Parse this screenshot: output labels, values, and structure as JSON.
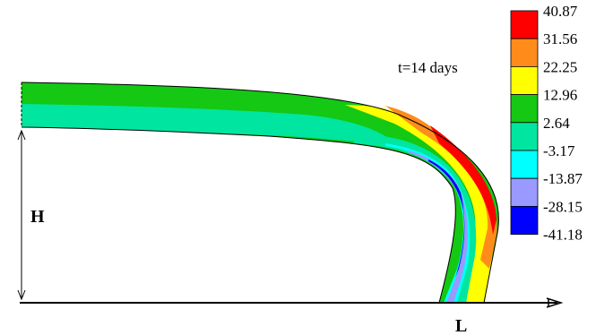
{
  "annotation": {
    "time_label": "t=14 days"
  },
  "dimensions": {
    "height_label": "H",
    "length_label": "L"
  },
  "legend": {
    "levels": [
      {
        "value": "40.87",
        "color": "#ff0000"
      },
      {
        "value": "31.56",
        "color": "#ff8c1a"
      },
      {
        "value": "22.25",
        "color": "#ffff00"
      },
      {
        "value": "12.96",
        "color": "#14c814"
      },
      {
        "value": "2.64",
        "color": "#00e6a0"
      },
      {
        "value": "-3.17",
        "color": "#00ffff"
      },
      {
        "value": "-13.87",
        "color": "#9999ff"
      },
      {
        "value": "-28.15",
        "color": "#0000ff"
      },
      {
        "value": "-41.18",
        "color": null
      }
    ]
  }
}
